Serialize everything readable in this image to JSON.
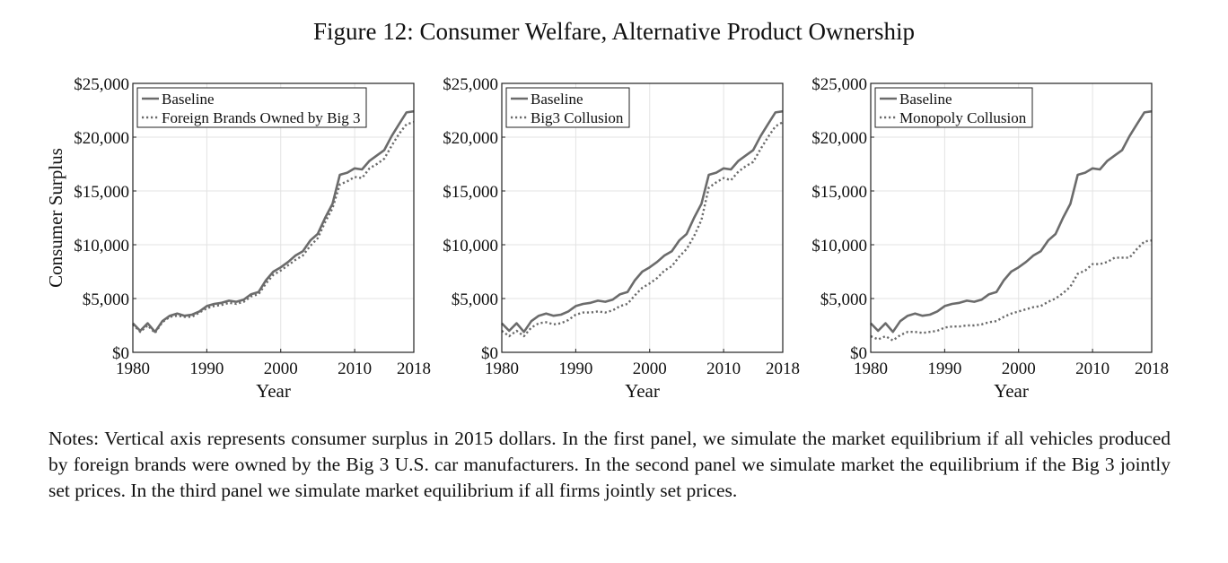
{
  "figure_title": "Figure 12: Consumer Welfare, Alternative Product Ownership",
  "notes": "Notes: Vertical axis represents consumer surplus in 2015 dollars. In the first panel, we simulate the market equilibrium if all vehicles produced by foreign brands were owned by the Big 3 U.S. car manufacturers. In the second panel we simulate market the equilibrium if the Big 3 jointly set prices. In the third panel we simulate market equilibrium if all firms jointly set prices.",
  "colors": {
    "series": "#6b6b6b",
    "grid": "#e3e3e3",
    "axis": "#222222"
  },
  "chart_data": [
    {
      "type": "line",
      "title": "",
      "xlabel": "Year",
      "ylabel": "Consumer Surplus",
      "xlim": [
        1980,
        2018
      ],
      "ylim": [
        0,
        25000
      ],
      "xticks": [
        1980,
        1990,
        2000,
        2010,
        2018
      ],
      "yticks": [
        0,
        5000,
        10000,
        15000,
        20000,
        25000
      ],
      "ytick_labels": [
        "$0",
        "$5,000",
        "$10,000",
        "$15,000",
        "$20,000",
        "$25,000"
      ],
      "grid": true,
      "legend": "top-left",
      "x": [
        1980,
        1981,
        1982,
        1983,
        1984,
        1985,
        1986,
        1987,
        1988,
        1989,
        1990,
        1991,
        1992,
        1993,
        1994,
        1995,
        1996,
        1997,
        1998,
        1999,
        2000,
        2001,
        2002,
        2003,
        2004,
        2005,
        2006,
        2007,
        2008,
        2009,
        2010,
        2011,
        2012,
        2013,
        2014,
        2015,
        2016,
        2017,
        2018
      ],
      "series": [
        {
          "name": "Baseline",
          "style": "solid",
          "values": [
            2700,
            2000,
            2700,
            1900,
            2900,
            3400,
            3600,
            3400,
            3500,
            3800,
            4300,
            4500,
            4600,
            4800,
            4700,
            4900,
            5400,
            5600,
            6700,
            7500,
            7900,
            8400,
            9000,
            9400,
            10400,
            11000,
            12500,
            13800,
            16500,
            16700,
            17100,
            17000,
            17800,
            18300,
            18800,
            20100,
            21200,
            22300,
            22400
          ]
        },
        {
          "name": "Foreign Brands Owned by Big 3",
          "style": "dotted",
          "values": [
            2600,
            1900,
            2500,
            1800,
            2800,
            3300,
            3400,
            3300,
            3300,
            3700,
            4100,
            4300,
            4400,
            4600,
            4500,
            4700,
            5200,
            5400,
            6400,
            7200,
            7600,
            8100,
            8600,
            9000,
            9900,
            10600,
            12100,
            13400,
            15600,
            15900,
            16300,
            16200,
            17100,
            17500,
            18000,
            19200,
            20300,
            21200,
            21400
          ]
        }
      ]
    },
    {
      "type": "line",
      "title": "",
      "xlabel": "Year",
      "ylabel": "",
      "xlim": [
        1980,
        2018
      ],
      "ylim": [
        0,
        25000
      ],
      "xticks": [
        1980,
        1990,
        2000,
        2010,
        2018
      ],
      "yticks": [
        0,
        5000,
        10000,
        15000,
        20000,
        25000
      ],
      "ytick_labels": [
        "$0",
        "$5,000",
        "$10,000",
        "$15,000",
        "$20,000",
        "$25,000"
      ],
      "grid": true,
      "legend": "top-left",
      "x": [
        1980,
        1981,
        1982,
        1983,
        1984,
        1985,
        1986,
        1987,
        1988,
        1989,
        1990,
        1991,
        1992,
        1993,
        1994,
        1995,
        1996,
        1997,
        1998,
        1999,
        2000,
        2001,
        2002,
        2003,
        2004,
        2005,
        2006,
        2007,
        2008,
        2009,
        2010,
        2011,
        2012,
        2013,
        2014,
        2015,
        2016,
        2017,
        2018
      ],
      "series": [
        {
          "name": "Baseline",
          "style": "solid",
          "values": [
            2700,
            2000,
            2700,
            1900,
            2900,
            3400,
            3600,
            3400,
            3500,
            3800,
            4300,
            4500,
            4600,
            4800,
            4700,
            4900,
            5400,
            5600,
            6700,
            7500,
            7900,
            8400,
            9000,
            9400,
            10400,
            11000,
            12500,
            13800,
            16500,
            16700,
            17100,
            17000,
            17800,
            18300,
            18800,
            20100,
            21200,
            22300,
            22400
          ]
        },
        {
          "name": "Big3 Collusion",
          "style": "dotted",
          "values": [
            2000,
            1500,
            2000,
            1500,
            2300,
            2700,
            2800,
            2600,
            2700,
            3000,
            3500,
            3700,
            3700,
            3800,
            3700,
            3900,
            4300,
            4500,
            5300,
            6000,
            6400,
            6900,
            7600,
            8000,
            8900,
            9600,
            10800,
            12300,
            15300,
            15800,
            16200,
            16000,
            16800,
            17300,
            17700,
            18900,
            20000,
            21000,
            21400
          ]
        }
      ]
    },
    {
      "type": "line",
      "title": "",
      "xlabel": "Year",
      "ylabel": "",
      "xlim": [
        1980,
        2018
      ],
      "ylim": [
        0,
        25000
      ],
      "xticks": [
        1980,
        1990,
        2000,
        2010,
        2018
      ],
      "yticks": [
        0,
        5000,
        10000,
        15000,
        20000,
        25000
      ],
      "ytick_labels": [
        "$0",
        "$5,000",
        "$10,000",
        "$15,000",
        "$20,000",
        "$25,000"
      ],
      "grid": true,
      "legend": "top-left",
      "x": [
        1980,
        1981,
        1982,
        1983,
        1984,
        1985,
        1986,
        1987,
        1988,
        1989,
        1990,
        1991,
        1992,
        1993,
        1994,
        1995,
        1996,
        1997,
        1998,
        1999,
        2000,
        2001,
        2002,
        2003,
        2004,
        2005,
        2006,
        2007,
        2008,
        2009,
        2010,
        2011,
        2012,
        2013,
        2014,
        2015,
        2016,
        2017,
        2018
      ],
      "series": [
        {
          "name": "Baseline",
          "style": "solid",
          "values": [
            2700,
            2000,
            2700,
            1900,
            2900,
            3400,
            3600,
            3400,
            3500,
            3800,
            4300,
            4500,
            4600,
            4800,
            4700,
            4900,
            5400,
            5600,
            6700,
            7500,
            7900,
            8400,
            9000,
            9400,
            10400,
            11000,
            12500,
            13800,
            16500,
            16700,
            17100,
            17000,
            17800,
            18300,
            18800,
            20100,
            21200,
            22300,
            22400
          ]
        },
        {
          "name": "Monopoly Collusion",
          "style": "dotted",
          "values": [
            1500,
            1200,
            1500,
            1100,
            1600,
            1900,
            1900,
            1800,
            1900,
            2000,
            2300,
            2400,
            2400,
            2500,
            2500,
            2600,
            2800,
            2900,
            3300,
            3600,
            3800,
            4000,
            4200,
            4300,
            4700,
            5000,
            5500,
            6100,
            7300,
            7600,
            8200,
            8200,
            8400,
            8800,
            8800,
            8800,
            9600,
            10300,
            10400
          ]
        }
      ]
    }
  ]
}
